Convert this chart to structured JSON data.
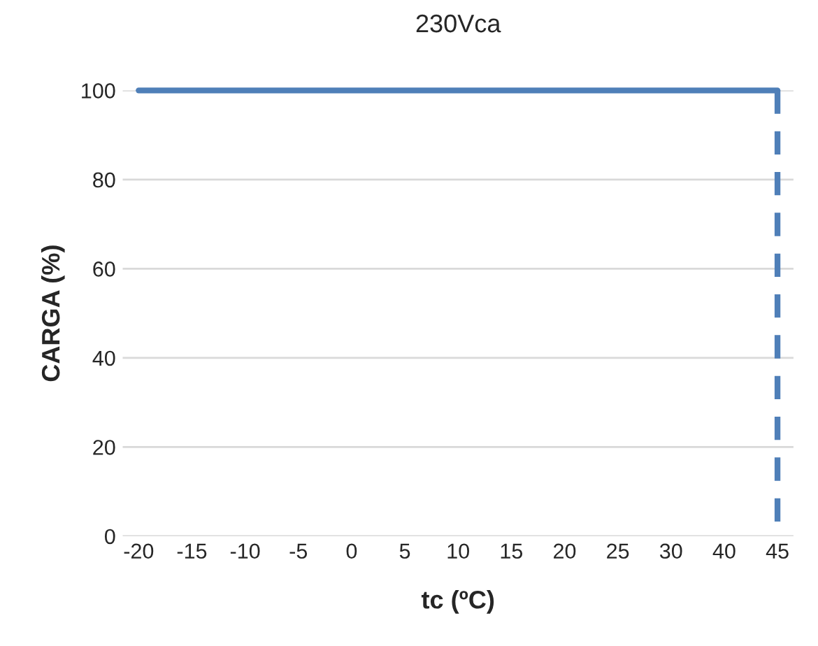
{
  "chart_data": {
    "type": "line",
    "title": "230Vca",
    "xlabel": "tc (ºC)",
    "ylabel": "CARGA (%)",
    "categories": [
      "-20",
      "-15",
      "-10",
      "-5",
      "0",
      "5",
      "10",
      "15",
      "20",
      "25",
      "30",
      "40",
      "45"
    ],
    "series": [
      {
        "color": "#4f7fb8",
        "values": [
          100,
          100,
          100,
          100,
          100,
          100,
          100,
          100,
          100,
          100,
          100,
          100,
          100
        ],
        "line_style": "solid"
      },
      {
        "color": "#4f7fb8",
        "type": "line",
        "x": [
          "45",
          "45"
        ],
        "values": [
          100,
          0
        ],
        "line_style": "dashed"
      }
    ],
    "ylim": [
      0,
      100
    ],
    "yticks": [
      0,
      20,
      40,
      60,
      80,
      100
    ],
    "grid": "y",
    "marker": "none"
  }
}
